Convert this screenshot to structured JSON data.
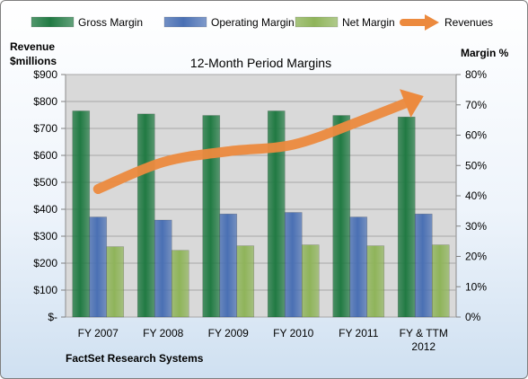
{
  "chart_data": {
    "type": "bar",
    "title": "12-Month Period Margins",
    "categories": [
      [
        "FY 2007"
      ],
      [
        "FY 2008"
      ],
      [
        "FY 2009"
      ],
      [
        "FY 2010"
      ],
      [
        "FY 2011"
      ],
      [
        "FY & TTM",
        "2012"
      ]
    ],
    "series": [
      {
        "name": "Gross Margin",
        "type": "bar",
        "axis": "right",
        "color": "#217a43",
        "values": [
          68,
          67,
          66.5,
          68,
          66.5,
          66
        ]
      },
      {
        "name": "Operating Margin",
        "type": "bar",
        "axis": "right",
        "color": "#4a70b4",
        "values": [
          33,
          32,
          34,
          34.5,
          33,
          34
        ]
      },
      {
        "name": "Net Margin",
        "type": "bar",
        "axis": "right",
        "color": "#8fb45a",
        "values": [
          23.2,
          22,
          23.5,
          23.8,
          23.5,
          23.8
        ]
      },
      {
        "name": "Revenues",
        "type": "line",
        "axis": "left",
        "color": "#ec8a3e",
        "values": [
          475,
          575,
          615,
          640,
          725,
          820
        ]
      }
    ],
    "left_axis": {
      "label_line1": "Revenue",
      "label_line2": "$millions",
      "ylim": [
        0,
        900
      ],
      "ticks": [
        "$-",
        "$100",
        "$200",
        "$300",
        "$400",
        "$500",
        "$600",
        "$700",
        "$800",
        "$900"
      ]
    },
    "right_axis": {
      "label": "Margin %",
      "ylim": [
        0,
        80
      ],
      "ticks": [
        "0%",
        "10%",
        "20%",
        "30%",
        "40%",
        "50%",
        "60%",
        "70%",
        "80%"
      ]
    },
    "legend_position": "top",
    "grid": true,
    "footer": "FactSet Research Systems",
    "plot_background": "#d9d9d9",
    "gridline_color": "#a6a6a6"
  }
}
